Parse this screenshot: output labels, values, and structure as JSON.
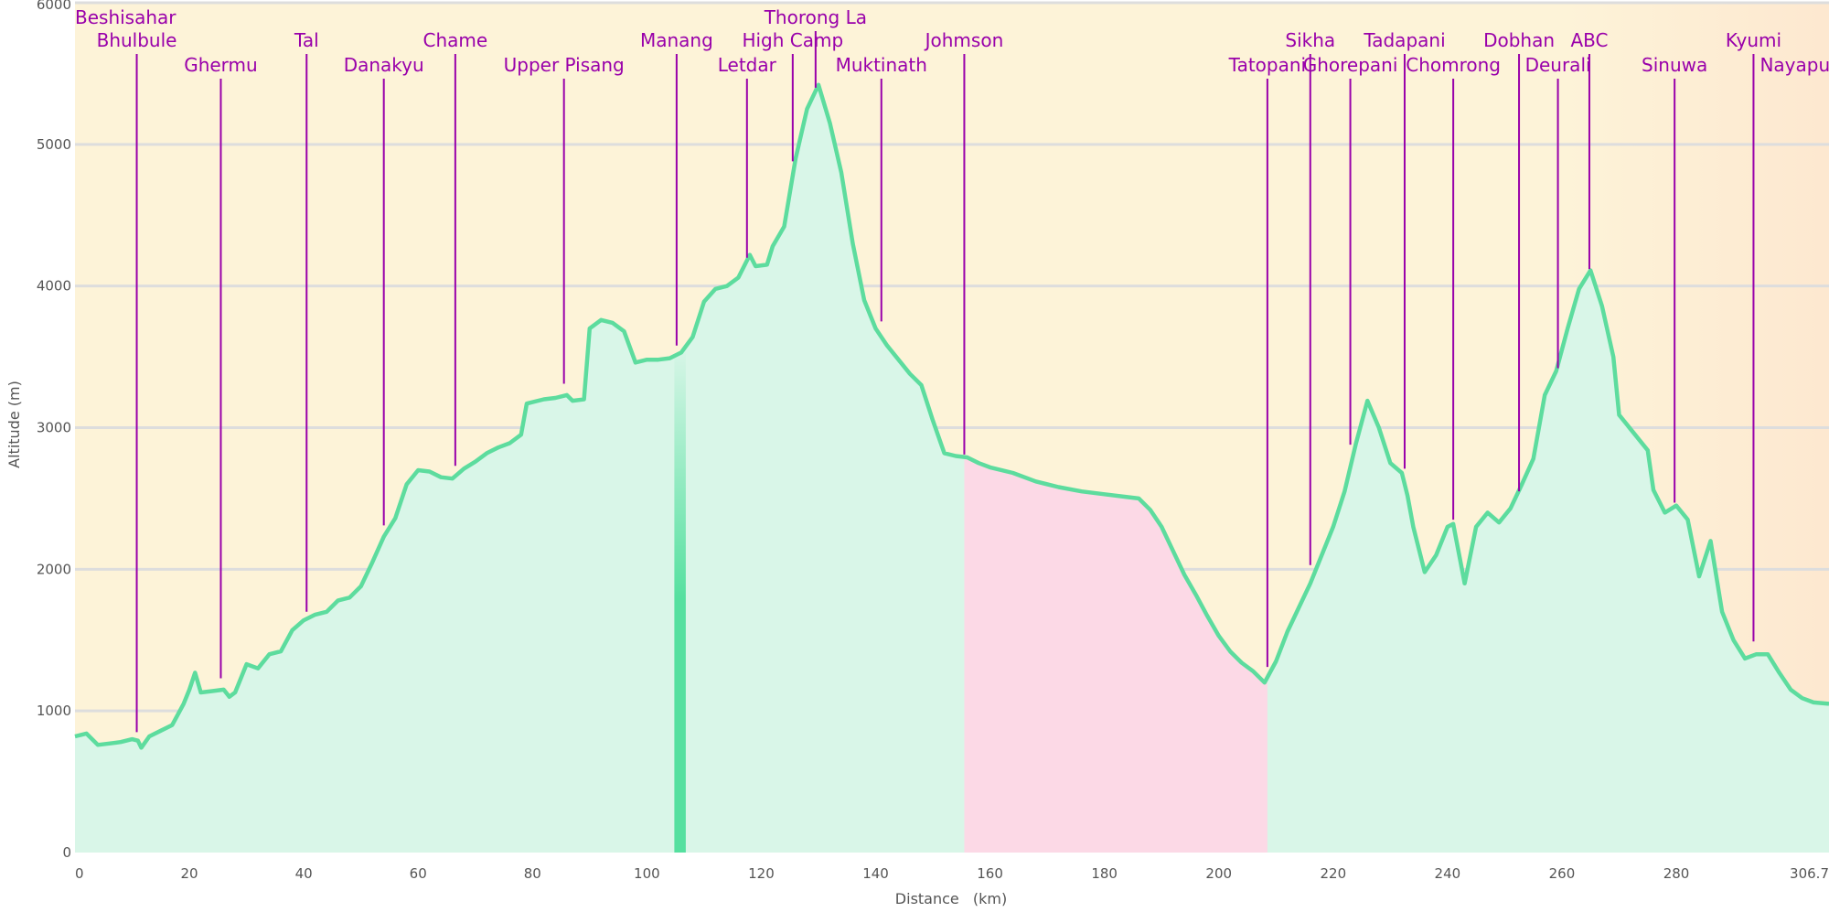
{
  "chart_data": {
    "type": "area",
    "title": "",
    "xlabel": "Distance",
    "xunit": "(km)",
    "ylabel": "Altitude (m)",
    "xlim": [
      0,
      306.7
    ],
    "ylim": [
      0,
      6000
    ],
    "x_ticks": [
      "0",
      "20",
      "40",
      "60",
      "80",
      "100",
      "120",
      "140",
      "160",
      "180",
      "200",
      "220",
      "240",
      "260",
      "280",
      "306.7"
    ],
    "y_ticks": [
      "0",
      "1000",
      "2000",
      "3000",
      "4000",
      "5000",
      "6000"
    ],
    "grid": true,
    "colors": {
      "sky": "#fdf3d8",
      "sky_right": "#fde8d0",
      "terrain_fill": "#d9f6e8",
      "profile_line": "#5ddc9e",
      "transport_segment": "#fcd9e6",
      "waypoint": "#9900aa",
      "grid": "#dddddd"
    },
    "highlight_segments": [
      {
        "type": "bar",
        "x_start": 104.8,
        "x_end": 106.8,
        "color": "#55e09f"
      },
      {
        "type": "band",
        "x_start": 155.5,
        "x_end": 208.5,
        "color": "#fcd9e6"
      }
    ],
    "profile": [
      [
        0,
        820
      ],
      [
        2,
        840
      ],
      [
        4,
        760
      ],
      [
        6,
        770
      ],
      [
        8,
        780
      ],
      [
        10,
        800
      ],
      [
        11,
        790
      ],
      [
        11.6,
        740
      ],
      [
        13,
        820
      ],
      [
        15,
        860
      ],
      [
        17,
        900
      ],
      [
        19,
        1050
      ],
      [
        20,
        1150
      ],
      [
        21,
        1270
      ],
      [
        22,
        1130
      ],
      [
        24,
        1140
      ],
      [
        26,
        1150
      ],
      [
        27,
        1100
      ],
      [
        28,
        1130
      ],
      [
        30,
        1330
      ],
      [
        32,
        1300
      ],
      [
        34,
        1400
      ],
      [
        36,
        1420
      ],
      [
        38,
        1570
      ],
      [
        40,
        1640
      ],
      [
        42,
        1680
      ],
      [
        44,
        1700
      ],
      [
        46,
        1780
      ],
      [
        48,
        1800
      ],
      [
        50,
        1880
      ],
      [
        52,
        2050
      ],
      [
        54,
        2230
      ],
      [
        56,
        2360
      ],
      [
        58,
        2600
      ],
      [
        60,
        2700
      ],
      [
        62,
        2690
      ],
      [
        64,
        2650
      ],
      [
        66,
        2640
      ],
      [
        68,
        2710
      ],
      [
        70,
        2760
      ],
      [
        72,
        2820
      ],
      [
        74,
        2860
      ],
      [
        76,
        2890
      ],
      [
        78,
        2950
      ],
      [
        79,
        3170
      ],
      [
        82,
        3200
      ],
      [
        84,
        3210
      ],
      [
        86,
        3230
      ],
      [
        87,
        3190
      ],
      [
        89,
        3200
      ],
      [
        90,
        3700
      ],
      [
        92,
        3760
      ],
      [
        94,
        3740
      ],
      [
        96,
        3680
      ],
      [
        98,
        3460
      ],
      [
        100,
        3480
      ],
      [
        102,
        3480
      ],
      [
        104,
        3490
      ],
      [
        106,
        3530
      ],
      [
        108,
        3640
      ],
      [
        110,
        3890
      ],
      [
        112,
        3980
      ],
      [
        114,
        4000
      ],
      [
        116,
        4060
      ],
      [
        118,
        4220
      ],
      [
        119,
        4140
      ],
      [
        121,
        4150
      ],
      [
        122,
        4280
      ],
      [
        124,
        4420
      ],
      [
        126,
        4900
      ],
      [
        128,
        5250
      ],
      [
        130,
        5420
      ],
      [
        132,
        5150
      ],
      [
        134,
        4800
      ],
      [
        136,
        4300
      ],
      [
        138,
        3900
      ],
      [
        140,
        3700
      ],
      [
        142,
        3580
      ],
      [
        144,
        3480
      ],
      [
        146,
        3380
      ],
      [
        148,
        3300
      ],
      [
        150,
        3050
      ],
      [
        152,
        2820
      ],
      [
        154,
        2800
      ],
      [
        156,
        2790
      ],
      [
        158,
        2750
      ],
      [
        160,
        2720
      ],
      [
        164,
        2680
      ],
      [
        168,
        2620
      ],
      [
        172,
        2580
      ],
      [
        176,
        2550
      ],
      [
        180,
        2530
      ],
      [
        184,
        2510
      ],
      [
        186,
        2500
      ],
      [
        188,
        2420
      ],
      [
        190,
        2300
      ],
      [
        192,
        2130
      ],
      [
        194,
        1960
      ],
      [
        196,
        1820
      ],
      [
        198,
        1670
      ],
      [
        200,
        1530
      ],
      [
        202,
        1420
      ],
      [
        204,
        1340
      ],
      [
        206,
        1280
      ],
      [
        208,
        1200
      ],
      [
        210,
        1350
      ],
      [
        212,
        1560
      ],
      [
        214,
        1730
      ],
      [
        216,
        1900
      ],
      [
        218,
        2100
      ],
      [
        220,
        2300
      ],
      [
        222,
        2550
      ],
      [
        224,
        2890
      ],
      [
        226,
        3190
      ],
      [
        228,
        3000
      ],
      [
        230,
        2750
      ],
      [
        232,
        2680
      ],
      [
        233,
        2520
      ],
      [
        234,
        2300
      ],
      [
        236,
        1980
      ],
      [
        238,
        2100
      ],
      [
        240,
        2300
      ],
      [
        241,
        2320
      ],
      [
        243,
        1900
      ],
      [
        245,
        2300
      ],
      [
        247,
        2400
      ],
      [
        249,
        2330
      ],
      [
        251,
        2430
      ],
      [
        253,
        2600
      ],
      [
        255,
        2780
      ],
      [
        257,
        3230
      ],
      [
        259,
        3400
      ],
      [
        261,
        3700
      ],
      [
        263,
        3980
      ],
      [
        265,
        4110
      ],
      [
        267,
        3860
      ],
      [
        269,
        3500
      ],
      [
        270,
        3090
      ],
      [
        275,
        2840
      ],
      [
        276,
        2560
      ],
      [
        278,
        2400
      ],
      [
        280,
        2450
      ],
      [
        282,
        2350
      ],
      [
        284,
        1950
      ],
      [
        286,
        2200
      ],
      [
        288,
        1700
      ],
      [
        290,
        1500
      ],
      [
        292,
        1370
      ],
      [
        294,
        1400
      ],
      [
        296,
        1400
      ],
      [
        298,
        1270
      ],
      [
        300,
        1150
      ],
      [
        302,
        1090
      ],
      [
        304,
        1060
      ],
      [
        306.7,
        1050
      ]
    ],
    "waypoints": [
      {
        "name": "Beshisahar",
        "x": 0,
        "alt": 820,
        "label_row": 0,
        "anchor": "start"
      },
      {
        "name": "Bhulbule",
        "x": 10.8,
        "alt": 850,
        "label_row": 1,
        "anchor": "middle"
      },
      {
        "name": "Ghermu",
        "x": 25.5,
        "alt": 1230,
        "label_row": 2,
        "anchor": "middle"
      },
      {
        "name": "Tal",
        "x": 40.5,
        "alt": 1700,
        "label_row": 1,
        "anchor": "middle"
      },
      {
        "name": "Danakyu",
        "x": 54,
        "alt": 2310,
        "label_row": 2,
        "anchor": "middle"
      },
      {
        "name": "Chame",
        "x": 66.5,
        "alt": 2730,
        "label_row": 1,
        "anchor": "middle"
      },
      {
        "name": "Upper Pisang",
        "x": 85.5,
        "alt": 3310,
        "label_row": 2,
        "anchor": "middle"
      },
      {
        "name": "Manang",
        "x": 105.2,
        "alt": 3580,
        "label_row": 1,
        "anchor": "middle"
      },
      {
        "name": "Letdar",
        "x": 117.5,
        "alt": 4200,
        "label_row": 2,
        "anchor": "middle"
      },
      {
        "name": "High Camp",
        "x": 125.5,
        "alt": 4880,
        "label_row": 1,
        "anchor": "middle"
      },
      {
        "name": "Thorong La",
        "x": 129.5,
        "alt": 5400,
        "label_row": 0,
        "anchor": "middle"
      },
      {
        "name": "Muktinath",
        "x": 141,
        "alt": 3750,
        "label_row": 2,
        "anchor": "middle"
      },
      {
        "name": "Johmson",
        "x": 155.5,
        "alt": 2810,
        "label_row": 1,
        "anchor": "middle"
      },
      {
        "name": "Tatopani",
        "x": 208.5,
        "alt": 1310,
        "label_row": 2,
        "anchor": "middle"
      },
      {
        "name": "Sikha",
        "x": 216,
        "alt": 2030,
        "label_row": 1,
        "anchor": "middle"
      },
      {
        "name": "Ghorepani",
        "x": 223,
        "alt": 2880,
        "label_row": 2,
        "anchor": "middle"
      },
      {
        "name": "Tadapani",
        "x": 232.5,
        "alt": 2710,
        "label_row": 1,
        "anchor": "middle"
      },
      {
        "name": "Chomrong",
        "x": 241,
        "alt": 2350,
        "label_row": 2,
        "anchor": "middle"
      },
      {
        "name": "Dobhan",
        "x": 252.5,
        "alt": 2550,
        "label_row": 1,
        "anchor": "middle"
      },
      {
        "name": "Deurali",
        "x": 259.3,
        "alt": 3420,
        "label_row": 2,
        "anchor": "middle"
      },
      {
        "name": "ABC",
        "x": 264.8,
        "alt": 4120,
        "label_row": 1,
        "anchor": "middle"
      },
      {
        "name": "Sinuwa",
        "x": 279.7,
        "alt": 2470,
        "label_row": 2,
        "anchor": "middle"
      },
      {
        "name": "Kyumi",
        "x": 293.5,
        "alt": 1490,
        "label_row": 1,
        "anchor": "middle"
      },
      {
        "name": "Nayapul",
        "x": 294.3,
        "alt": 1490,
        "label_row": 2,
        "anchor": "start"
      }
    ]
  }
}
